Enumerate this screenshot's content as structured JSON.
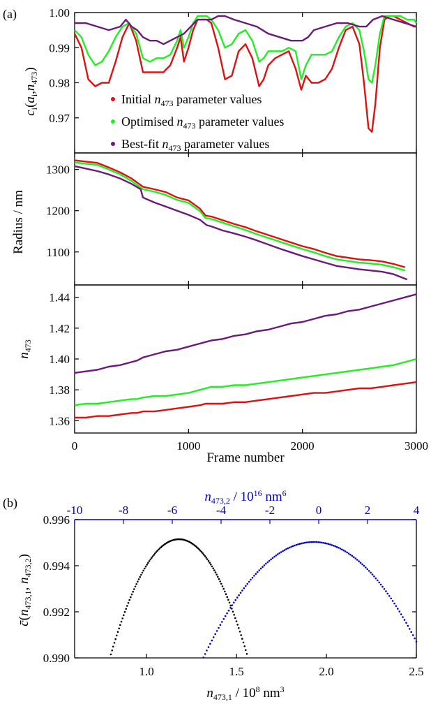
{
  "panel_a_label": "(a)",
  "panel_b_label": "(b)",
  "colors": {
    "red": "#dd1111",
    "green": "#22ee22",
    "purple": "#6a1b7a",
    "black": "#000000",
    "blue": "#0000cc"
  },
  "chart_data": [
    {
      "id": "a1",
      "type": "line",
      "ylabel": "c_i(a_i, n_473)",
      "xlim": [
        0,
        3000
      ],
      "ylim": [
        0.96,
        1.0
      ],
      "yticks": [
        "0.97",
        "0.98",
        "0.99",
        "1.00"
      ],
      "legend": "inside-bottom-center",
      "series": [
        {
          "name": "Initial n473 parameter values",
          "color": "red",
          "x": [
            0,
            60,
            120,
            180,
            240,
            300,
            360,
            420,
            480,
            540,
            600,
            660,
            720,
            780,
            840,
            900,
            930,
            960,
            1000,
            1040,
            1080,
            1120,
            1160,
            1200,
            1260,
            1320,
            1380,
            1440,
            1500,
            1560,
            1620,
            1660,
            1700,
            1760,
            1820,
            1880,
            1940,
            1990,
            2030,
            2080,
            2140,
            2200,
            2260,
            2320,
            2380,
            2440,
            2500,
            2540,
            2580,
            2610,
            2640,
            2680,
            2720,
            2760,
            2800,
            2860,
            2920,
            2980,
            3000
          ],
          "y": [
            0.994,
            0.99,
            0.981,
            0.979,
            0.98,
            0.98,
            0.986,
            0.993,
            0.997,
            0.992,
            0.983,
            0.983,
            0.983,
            0.983,
            0.985,
            0.99,
            0.993,
            0.986,
            0.99,
            0.995,
            0.998,
            0.998,
            0.998,
            0.997,
            0.99,
            0.981,
            0.982,
            0.989,
            0.991,
            0.987,
            0.979,
            0.981,
            0.985,
            0.987,
            0.988,
            0.989,
            0.984,
            0.978,
            0.982,
            0.98,
            0.98,
            0.981,
            0.984,
            0.99,
            0.995,
            0.996,
            0.991,
            0.98,
            0.967,
            0.966,
            0.974,
            0.99,
            0.998,
            0.999,
            0.999,
            0.998,
            0.997,
            0.996,
            0.996
          ]
        },
        {
          "name": "Optimised n473 parameter values",
          "color": "green",
          "x": [
            0,
            60,
            120,
            180,
            240,
            300,
            360,
            420,
            480,
            540,
            600,
            660,
            720,
            780,
            840,
            900,
            930,
            960,
            1000,
            1040,
            1080,
            1120,
            1160,
            1200,
            1260,
            1320,
            1380,
            1440,
            1500,
            1560,
            1620,
            1660,
            1700,
            1760,
            1820,
            1880,
            1940,
            1990,
            2030,
            2080,
            2140,
            2200,
            2260,
            2320,
            2380,
            2440,
            2500,
            2540,
            2580,
            2610,
            2640,
            2680,
            2720,
            2760,
            2800,
            2860,
            2920,
            2980,
            3000
          ],
          "y": [
            0.995,
            0.993,
            0.988,
            0.985,
            0.986,
            0.989,
            0.993,
            0.996,
            0.997,
            0.994,
            0.987,
            0.986,
            0.987,
            0.987,
            0.988,
            0.992,
            0.995,
            0.99,
            0.993,
            0.997,
            0.999,
            0.999,
            0.999,
            0.998,
            0.995,
            0.99,
            0.991,
            0.994,
            0.995,
            0.992,
            0.986,
            0.987,
            0.989,
            0.989,
            0.989,
            0.99,
            0.989,
            0.981,
            0.985,
            0.988,
            0.988,
            0.988,
            0.989,
            0.993,
            0.996,
            0.997,
            0.995,
            0.989,
            0.981,
            0.98,
            0.985,
            0.994,
            0.999,
            0.999,
            0.999,
            0.999,
            0.998,
            0.998,
            0.997
          ]
        },
        {
          "name": "Best-fit n473 parameter values",
          "color": "purple",
          "x": [
            0,
            100,
            200,
            300,
            400,
            450,
            500,
            550,
            600,
            660,
            720,
            780,
            840,
            900,
            960,
            1020,
            1080,
            1140,
            1200,
            1260,
            1320,
            1400,
            1500,
            1600,
            1700,
            1800,
            1900,
            1950,
            2000,
            2050,
            2100,
            2200,
            2300,
            2400,
            2500,
            2560,
            2620,
            2700,
            2800,
            2900,
            3000
          ],
          "y": [
            0.997,
            0.997,
            0.996,
            0.995,
            0.996,
            0.998,
            0.996,
            0.995,
            0.993,
            0.992,
            0.992,
            0.991,
            0.992,
            0.993,
            0.994,
            0.996,
            0.998,
            0.998,
            0.998,
            0.999,
            0.999,
            0.998,
            0.997,
            0.996,
            0.994,
            0.993,
            0.992,
            0.992,
            0.992,
            0.993,
            0.995,
            0.996,
            0.997,
            0.997,
            0.996,
            0.996,
            0.998,
            0.999,
            0.998,
            0.997,
            0.996
          ]
        }
      ]
    },
    {
      "id": "a2",
      "type": "line",
      "ylabel": "Radius / nm",
      "xlim": [
        0,
        3000
      ],
      "ylim": [
        1020,
        1340
      ],
      "yticks": [
        "1100",
        "1200",
        "1300"
      ],
      "series": [
        {
          "color": "red",
          "x": [
            0,
            100,
            200,
            300,
            400,
            500,
            550,
            600,
            700,
            800,
            900,
            1000,
            1100,
            1150,
            1200,
            1300,
            1400,
            1500,
            1600,
            1700,
            1800,
            1900,
            2000,
            2100,
            2200,
            2300,
            2400,
            2500,
            2600,
            2700,
            2800,
            2900
          ],
          "y": [
            1322,
            1319,
            1316,
            1305,
            1293,
            1278,
            1268,
            1258,
            1252,
            1245,
            1232,
            1225,
            1205,
            1188,
            1186,
            1177,
            1168,
            1160,
            1150,
            1141,
            1132,
            1123,
            1114,
            1107,
            1098,
            1090,
            1086,
            1082,
            1080,
            1077,
            1071,
            1063
          ]
        },
        {
          "color": "green",
          "x": [
            0,
            100,
            200,
            300,
            400,
            500,
            550,
            600,
            700,
            800,
            900,
            1000,
            1100,
            1150,
            1200,
            1300,
            1400,
            1500,
            1600,
            1700,
            1800,
            1900,
            2000,
            2100,
            2200,
            2300,
            2400,
            2500,
            2600,
            2700,
            2800,
            2900
          ],
          "y": [
            1317,
            1314,
            1311,
            1300,
            1288,
            1272,
            1262,
            1252,
            1246,
            1238,
            1226,
            1219,
            1199,
            1182,
            1180,
            1171,
            1162,
            1153,
            1143,
            1134,
            1125,
            1116,
            1107,
            1099,
            1090,
            1082,
            1078,
            1074,
            1072,
            1069,
            1063,
            1055
          ]
        },
        {
          "color": "purple",
          "x": [
            0,
            100,
            200,
            300,
            400,
            500,
            580,
            600,
            700,
            800,
            900,
            1000,
            1100,
            1160,
            1200,
            1300,
            1400,
            1500,
            1600,
            1700,
            1800,
            1900,
            2000,
            2100,
            2200,
            2300,
            2400,
            2500,
            2600,
            2700,
            2800,
            2920
          ],
          "y": [
            1308,
            1302,
            1296,
            1288,
            1278,
            1265,
            1252,
            1232,
            1220,
            1210,
            1200,
            1190,
            1178,
            1165,
            1162,
            1152,
            1145,
            1137,
            1128,
            1118,
            1108,
            1099,
            1090,
            1082,
            1074,
            1066,
            1062,
            1058,
            1055,
            1052,
            1046,
            1033
          ]
        }
      ]
    },
    {
      "id": "a3",
      "type": "line",
      "ylabel": "n473",
      "xlabel": "Frame number",
      "xlim": [
        0,
        3000
      ],
      "xticks": [
        "0",
        "1000",
        "2000",
        "3000"
      ],
      "ylim": [
        1.352,
        1.448
      ],
      "yticks": [
        "1.36",
        "1.38",
        "1.40",
        "1.42",
        "1.44"
      ],
      "series": [
        {
          "color": "purple",
          "x": [
            0,
            100,
            200,
            300,
            400,
            500,
            550,
            600,
            700,
            800,
            900,
            1000,
            1100,
            1150,
            1200,
            1300,
            1400,
            1500,
            1600,
            1700,
            1800,
            1900,
            2000,
            2100,
            2200,
            2300,
            2400,
            2500,
            2600,
            2700,
            2800,
            2900,
            3000
          ],
          "y": [
            1.391,
            1.392,
            1.393,
            1.395,
            1.396,
            1.398,
            1.399,
            1.401,
            1.403,
            1.405,
            1.406,
            1.408,
            1.41,
            1.411,
            1.412,
            1.413,
            1.415,
            1.416,
            1.418,
            1.419,
            1.421,
            1.423,
            1.424,
            1.426,
            1.428,
            1.429,
            1.431,
            1.432,
            1.434,
            1.436,
            1.438,
            1.44,
            1.442
          ]
        },
        {
          "color": "green",
          "x": [
            0,
            100,
            200,
            300,
            400,
            500,
            550,
            600,
            700,
            800,
            900,
            1000,
            1100,
            1150,
            1200,
            1300,
            1400,
            1500,
            1600,
            1700,
            1800,
            1900,
            2000,
            2100,
            2200,
            2300,
            2400,
            2500,
            2600,
            2700,
            2800,
            2900,
            3000
          ],
          "y": [
            1.37,
            1.371,
            1.371,
            1.372,
            1.373,
            1.374,
            1.374,
            1.375,
            1.376,
            1.376,
            1.377,
            1.378,
            1.38,
            1.381,
            1.382,
            1.382,
            1.383,
            1.383,
            1.384,
            1.385,
            1.386,
            1.387,
            1.388,
            1.389,
            1.39,
            1.391,
            1.392,
            1.393,
            1.394,
            1.395,
            1.396,
            1.398,
            1.4
          ]
        },
        {
          "color": "red",
          "x": [
            0,
            100,
            200,
            300,
            400,
            500,
            550,
            600,
            700,
            800,
            900,
            1000,
            1100,
            1150,
            1200,
            1300,
            1400,
            1500,
            1600,
            1700,
            1800,
            1900,
            2000,
            2100,
            2200,
            2300,
            2400,
            2500,
            2600,
            2700,
            2800,
            2900,
            3000
          ],
          "y": [
            1.362,
            1.362,
            1.363,
            1.363,
            1.364,
            1.365,
            1.365,
            1.366,
            1.366,
            1.367,
            1.368,
            1.369,
            1.37,
            1.371,
            1.371,
            1.371,
            1.372,
            1.372,
            1.373,
            1.374,
            1.375,
            1.376,
            1.377,
            1.378,
            1.378,
            1.379,
            1.38,
            1.381,
            1.381,
            1.382,
            1.383,
            1.384,
            1.385
          ]
        }
      ]
    },
    {
      "id": "b",
      "type": "scatter",
      "ylabel": "c̄(n473,1, n473,2)",
      "ylim": [
        0.99,
        0.996
      ],
      "yticks": [
        "0.990",
        "0.992",
        "0.994",
        "0.996"
      ],
      "xlabel_bottom": "n473,1 / 10^8 nm^3",
      "xlim_bottom": [
        0.6,
        2.5
      ],
      "xticks_bottom": [
        "1.0",
        "1.5",
        "2.0",
        "2.5"
      ],
      "xlabel_top": "n473,2 / 10^16 nm^6",
      "xlim_top": [
        -10,
        4
      ],
      "xticks_top": [
        "-10",
        "-8",
        "-6",
        "-4",
        "-2",
        "0",
        "2",
        "4"
      ],
      "series": [
        {
          "axis": "bottom",
          "color": "black",
          "vertex_x": 1.18,
          "vertex_y": 0.99515,
          "curvature": 0.0349,
          "x_range": [
            0.75,
            1.59
          ]
        },
        {
          "axis": "top",
          "color": "blue",
          "vertex_x": -0.2,
          "vertex_y": 0.99503,
          "curvature": 0.000245,
          "x_range": [
            -5.0,
            4.0
          ]
        }
      ]
    }
  ]
}
